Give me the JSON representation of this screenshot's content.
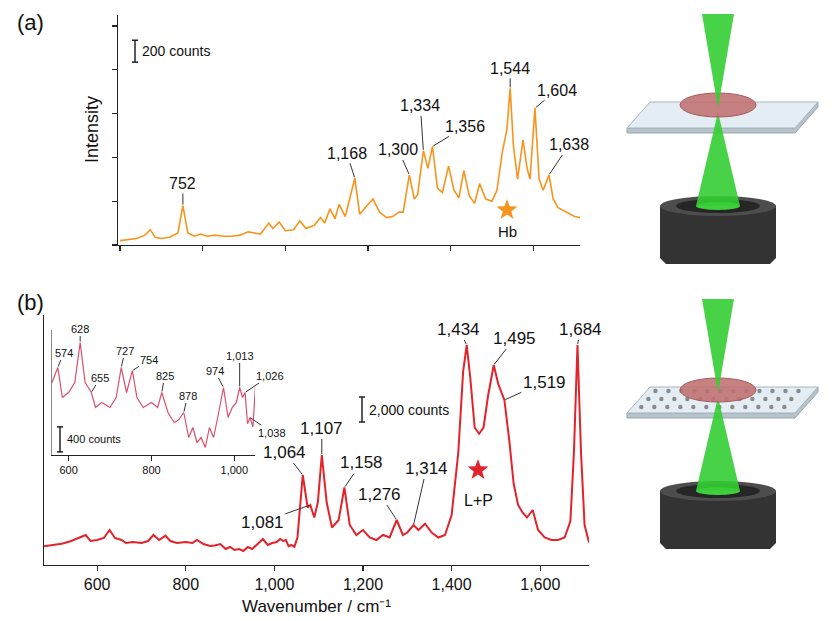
{
  "chart_data": [
    {
      "type": "line",
      "panel": "(a)",
      "y_title": "Intensity",
      "color": "#f7941d",
      "x": [
        600,
        620,
        640,
        660,
        673,
        685,
        700,
        720,
        740,
        752,
        764,
        780,
        795,
        810,
        830,
        850,
        870,
        890,
        910,
        925,
        940,
        960,
        970,
        985,
        1000,
        1020,
        1035,
        1050,
        1070,
        1085,
        1095,
        1108,
        1120,
        1130,
        1145,
        1168,
        1180,
        1195,
        1212,
        1228,
        1245,
        1260,
        1275,
        1285,
        1300,
        1312,
        1320,
        1334,
        1345,
        1356,
        1368,
        1380,
        1395,
        1408,
        1420,
        1432,
        1445,
        1458,
        1470,
        1485,
        1500,
        1512,
        1525,
        1536,
        1544,
        1552,
        1562,
        1575,
        1585,
        1592,
        1604,
        1614,
        1624,
        1638,
        1648,
        1660,
        1680,
        1700,
        1713
      ],
      "values": [
        40,
        50,
        60,
        90,
        140,
        70,
        60,
        70,
        110,
        360,
        110,
        80,
        100,
        80,
        90,
        80,
        80,
        90,
        120,
        110,
        100,
        200,
        150,
        210,
        130,
        140,
        220,
        150,
        180,
        250,
        200,
        330,
        240,
        370,
        260,
        610,
        280,
        350,
        420,
        300,
        250,
        260,
        300,
        300,
        640,
        420,
        460,
        860,
        700,
        900,
        520,
        480,
        720,
        500,
        430,
        680,
        450,
        380,
        560,
        420,
        400,
        500,
        850,
        1050,
        1430,
        900,
        600,
        960,
        700,
        600,
        1250,
        600,
        500,
        640,
        420,
        340,
        300,
        260,
        250
      ],
      "xlim": [
        595,
        1713
      ],
      "xticks": [
        600,
        800,
        1000,
        1200,
        1400,
        1600
      ],
      "ylim": [
        0,
        2100
      ],
      "yticks": [
        0,
        400,
        800,
        1200,
        1600,
        2000
      ],
      "tick_labels": false,
      "grid": false,
      "tag": "Hb",
      "scale_bar": {
        "value": 200,
        "label": "200 counts"
      },
      "peaks": [
        {
          "x": 752,
          "text": "752"
        },
        {
          "x": 1168,
          "text": "1,168"
        },
        {
          "x": 1300,
          "text": "1,300"
        },
        {
          "x": 1334,
          "text": "1,334"
        },
        {
          "x": 1356,
          "text": "1,356"
        },
        {
          "x": 1544,
          "text": "1,544"
        },
        {
          "x": 1604,
          "text": "1,604"
        },
        {
          "x": 1638,
          "text": "1,638"
        }
      ]
    },
    {
      "type": "line",
      "panel": "(b)",
      "x_title": "Wavenumber / cm⁻¹",
      "color": "#e3232b",
      "x": [
        480,
        500,
        520,
        540,
        560,
        574,
        585,
        600,
        615,
        628,
        640,
        655,
        665,
        680,
        700,
        715,
        727,
        740,
        754,
        765,
        780,
        800,
        815,
        825,
        840,
        855,
        865,
        878,
        890,
        900,
        910,
        920,
        930,
        940,
        950,
        960,
        974,
        985,
        995,
        1005,
        1013,
        1020,
        1026,
        1032,
        1038,
        1045,
        1052,
        1064,
        1075,
        1081,
        1090,
        1098,
        1107,
        1118,
        1130,
        1145,
        1158,
        1170,
        1185,
        1200,
        1215,
        1230,
        1245,
        1260,
        1276,
        1290,
        1300,
        1314,
        1325,
        1340,
        1355,
        1370,
        1385,
        1400,
        1415,
        1426,
        1434,
        1442,
        1452,
        1462,
        1472,
        1482,
        1495,
        1505,
        1512,
        1519,
        1530,
        1540,
        1550,
        1560,
        1570,
        1583,
        1595,
        1610,
        1625,
        1640,
        1655,
        1668,
        1676,
        1684,
        1692,
        1700,
        1710
      ],
      "values": [
        1500,
        1600,
        1700,
        1900,
        2160,
        2400,
        1920,
        2000,
        2160,
        2800,
        2160,
        2000,
        1760,
        1840,
        1760,
        1920,
        2400,
        2000,
        2350,
        1920,
        1760,
        1840,
        1760,
        2000,
        1680,
        1520,
        1560,
        1680,
        1280,
        1440,
        1200,
        1280,
        1120,
        1440,
        1280,
        1600,
        2080,
        1600,
        1760,
        1840,
        2080,
        1920,
        2000,
        1500,
        1600,
        1450,
        2200,
        7200,
        4600,
        4800,
        3800,
        5000,
        8800,
        5000,
        3000,
        3600,
        6200,
        3200,
        2400,
        2800,
        2200,
        2000,
        2400,
        2200,
        3600,
        2400,
        2600,
        3200,
        2800,
        3300,
        2600,
        2200,
        2400,
        4000,
        9000,
        15500,
        17600,
        15000,
        11000,
        10500,
        11000,
        13500,
        16000,
        14500,
        13800,
        13200,
        10000,
        6500,
        4800,
        4200,
        3800,
        4400,
        2800,
        2200,
        2000,
        2000,
        2200,
        3500,
        9000,
        17600,
        9000,
        3200,
        1800
      ],
      "xlim": [
        480,
        1710
      ],
      "xticks": [
        600,
        800,
        {
          "value": 1000,
          "label": "1,000"
        },
        {
          "value": 1200,
          "label": "1,200"
        },
        {
          "value": 1400,
          "label": "1,400"
        },
        {
          "value": 1600,
          "label": "1,600"
        }
      ],
      "ylim": [
        0,
        20000
      ],
      "tick_labels": "x",
      "grid": false,
      "tag": "L+P",
      "scale_bar": {
        "value": 2000,
        "label": "2,000 counts"
      },
      "peaks": [
        {
          "x": 1064,
          "text": "1,064"
        },
        {
          "x": 1081,
          "text": "1,081"
        },
        {
          "x": 1107,
          "text": "1,107"
        },
        {
          "x": 1158,
          "text": "1,158"
        },
        {
          "x": 1276,
          "text": "1,276"
        },
        {
          "x": 1314,
          "text": "1,314"
        },
        {
          "x": 1434,
          "text": "1,434"
        },
        {
          "x": 1495,
          "text": "1,495"
        },
        {
          "x": 1519,
          "text": "1,519"
        },
        {
          "x": 1684,
          "text": "1,684"
        }
      ],
      "inset": {
        "type": "line",
        "color": "#d9506e",
        "xlim": [
          560,
          1050
        ],
        "xticks": [
          600,
          800,
          {
            "value": 1000,
            "label": "1,000"
          }
        ],
        "ylim": [
          1000,
          3000
        ],
        "tick_labels": "x",
        "scale_bar": {
          "value": 400,
          "label": "400 counts"
        },
        "peaks": [
          {
            "x": 574,
            "text": "574"
          },
          {
            "x": 628,
            "text": "628"
          },
          {
            "x": 655,
            "text": "655"
          },
          {
            "x": 727,
            "text": "727"
          },
          {
            "x": 754,
            "text": "754"
          },
          {
            "x": 825,
            "text": "825"
          },
          {
            "x": 878,
            "text": "878"
          },
          {
            "x": 974,
            "text": "974"
          },
          {
            "x": 1013,
            "text": "1,013"
          },
          {
            "x": 1026,
            "text": "1,026"
          },
          {
            "x": 1038,
            "text": "1,038"
          }
        ]
      }
    }
  ]
}
